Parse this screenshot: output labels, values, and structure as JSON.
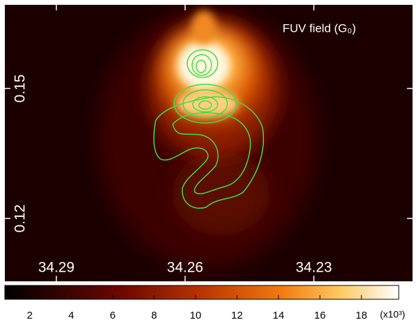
{
  "chart_data": {
    "type": "image",
    "title": "FUV field (G₀)",
    "xlim": [
      34.302,
      34.207
    ],
    "xticks": [
      34.29,
      34.26,
      34.23
    ],
    "ylim": [
      0.1055,
      0.1693
    ],
    "yticks": [
      0.12,
      0.15
    ],
    "colorbar": {
      "label": "(x10³)",
      "lim": [
        0.8,
        19.8
      ],
      "ticks": [
        2,
        4,
        6,
        8,
        10,
        12,
        14,
        16,
        18
      ]
    }
  }
}
